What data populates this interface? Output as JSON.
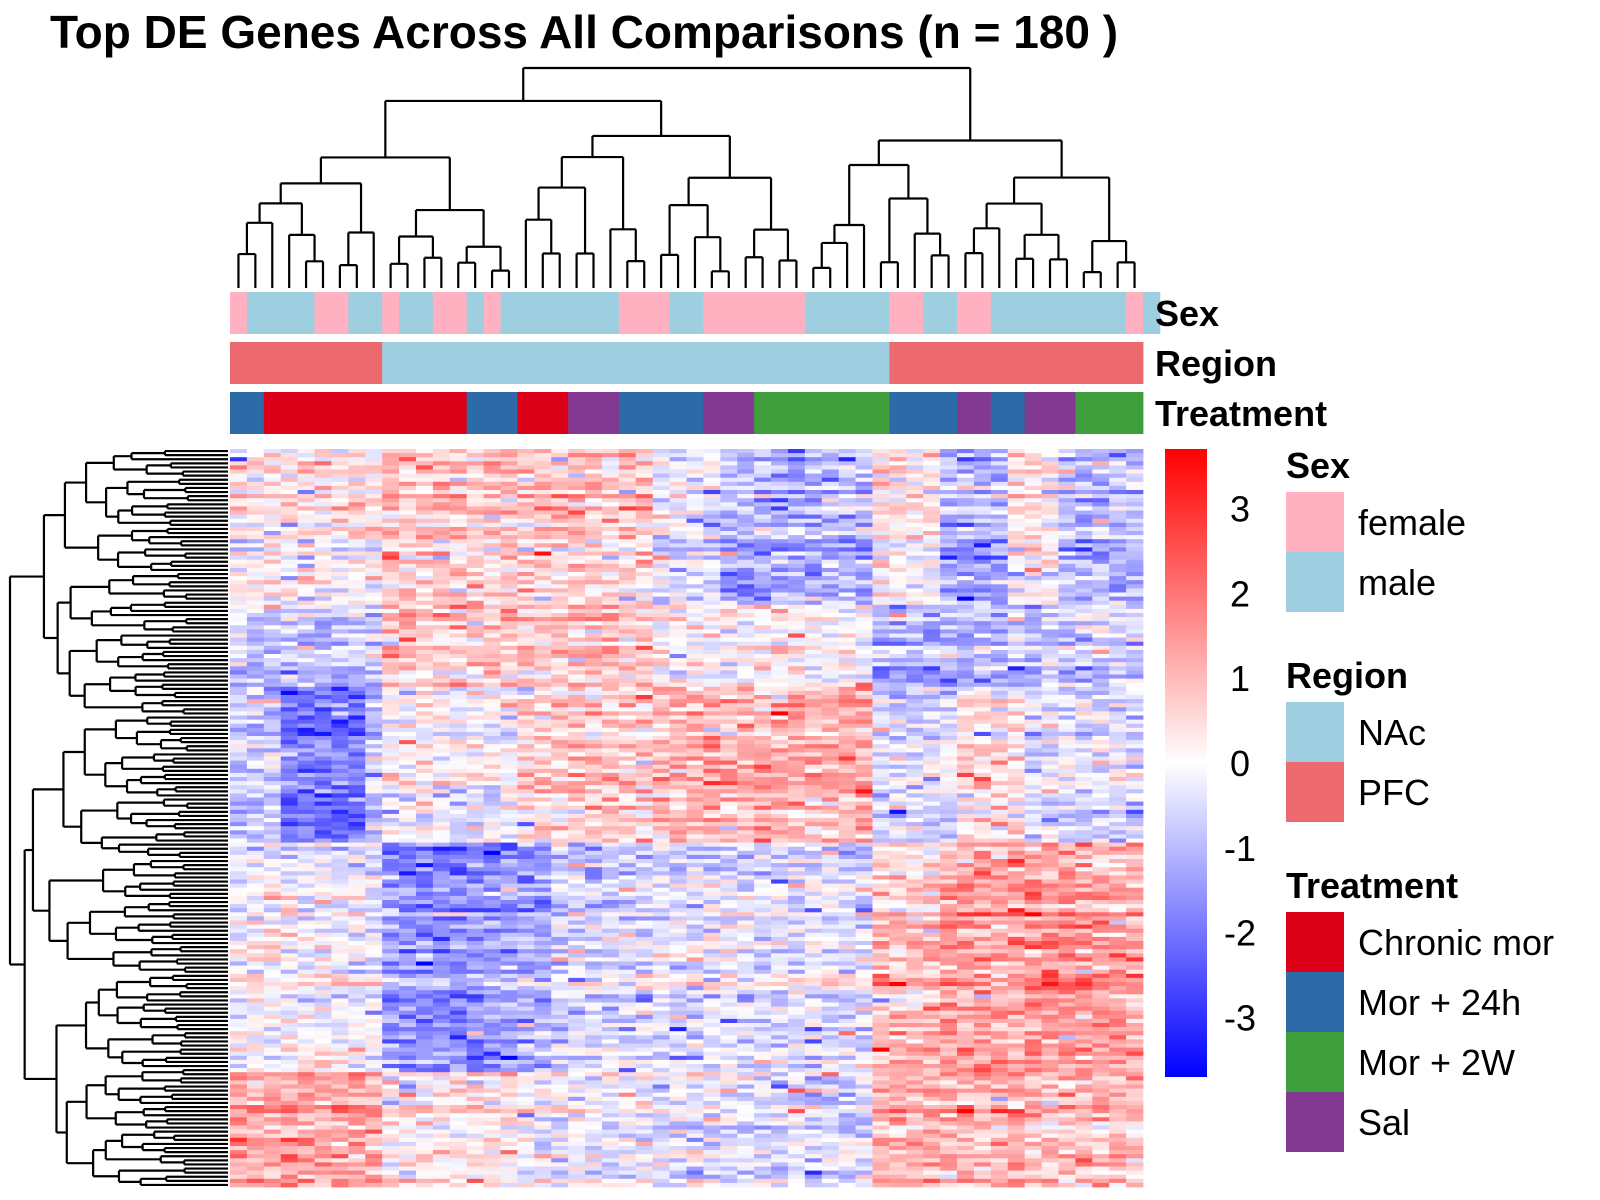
{
  "chart_data": {
    "type": "heatmap",
    "title": "Top DE Genes Across All Comparisons (n = 180 )",
    "n_genes": 180,
    "n_samples": 54,
    "color_scale": {
      "min": -3.7,
      "max": 3.7,
      "ticks": [
        3,
        2,
        1,
        0,
        -1,
        -2,
        -3
      ],
      "tick_labels": [
        "3",
        "2",
        "1",
        "0",
        "-1",
        "-2",
        "-3"
      ],
      "colors": [
        "#0000ff",
        "#ffffff",
        "#ff0000"
      ]
    },
    "column_dendrogram": true,
    "row_dendrogram": true,
    "column_annotations": [
      {
        "name": "Sex",
        "runs": [
          {
            "level": "female",
            "count": 1
          },
          {
            "level": "male",
            "count": 4
          },
          {
            "level": "female",
            "count": 2
          },
          {
            "level": "male",
            "count": 2
          },
          {
            "level": "female",
            "count": 1
          },
          {
            "level": "male",
            "count": 2
          },
          {
            "level": "female",
            "count": 2
          },
          {
            "level": "male",
            "count": 1
          },
          {
            "level": "female",
            "count": 1
          },
          {
            "level": "male",
            "count": 7
          },
          {
            "level": "female",
            "count": 3
          },
          {
            "level": "male",
            "count": 2
          },
          {
            "level": "female",
            "count": 6
          },
          {
            "level": "male",
            "count": 5
          },
          {
            "level": "female",
            "count": 2
          },
          {
            "level": "male",
            "count": 2
          },
          {
            "level": "female",
            "count": 2
          },
          {
            "level": "male",
            "count": 8
          },
          {
            "level": "female",
            "count": 1
          },
          {
            "level": "male",
            "count": 1
          }
        ]
      },
      {
        "name": "Region",
        "runs": [
          {
            "level": "PFC",
            "count": 9
          },
          {
            "level": "NAc",
            "count": 30
          },
          {
            "level": "PFC",
            "count": 15
          }
        ]
      },
      {
        "name": "Treatment",
        "runs": [
          {
            "level": "Mor + 24h",
            "count": 2
          },
          {
            "level": "Chronic mor",
            "count": 12
          },
          {
            "level": "Mor + 24h",
            "count": 3
          },
          {
            "level": "Chronic mor",
            "count": 3
          },
          {
            "level": "Sal",
            "count": 3
          },
          {
            "level": "Mor + 24h",
            "count": 5
          },
          {
            "level": "Sal",
            "count": 3
          },
          {
            "level": "Mor + 2W",
            "count": 8
          },
          {
            "level": "Mor + 24h",
            "count": 4
          },
          {
            "level": "Sal",
            "count": 2
          },
          {
            "level": "Mor + 24h",
            "count": 2
          },
          {
            "level": "Sal",
            "count": 3
          },
          {
            "level": "Mor + 2W",
            "count": 4
          }
        ]
      }
    ],
    "legends": [
      {
        "title": "Sex",
        "items": [
          {
            "label": "female",
            "color": "#ffb1c1"
          },
          {
            "label": "male",
            "color": "#9ecfe0"
          }
        ]
      },
      {
        "title": "Region",
        "items": [
          {
            "label": "NAc",
            "color": "#9ecfe0"
          },
          {
            "label": "PFC",
            "color": "#ec6a6e"
          }
        ]
      },
      {
        "title": "Treatment",
        "items": [
          {
            "label": "Chronic mor",
            "color": "#db0017"
          },
          {
            "label": "Mor + 24h",
            "color": "#2c6aa8"
          },
          {
            "label": "Mor + 2W",
            "color": "#3f9e3c"
          },
          {
            "label": "Sal",
            "color": "#833892"
          }
        ]
      }
    ],
    "row_blocks": [
      {
        "rows": 38,
        "cols": [
          0.3,
          0.3,
          0.3,
          0.3,
          0.3,
          0.3,
          0.3,
          0.3,
          0.3,
          0.8,
          0.8,
          0.8,
          0.8,
          0.8,
          0.8,
          0.8,
          0.8,
          0.8,
          0.8,
          0.8,
          0.8,
          0.8,
          0.8,
          0.8,
          0.8,
          -0.3,
          -0.3,
          -0.3,
          -0.3,
          -1.0,
          -1.0,
          -1.0,
          -1.0,
          -1.0,
          -1.0,
          -1.0,
          -1.0,
          -1.0,
          0.3,
          0.3,
          0.3,
          0.3,
          -1.1,
          -1.1,
          -1.1,
          -1.1,
          0.4,
          0.4,
          0.4,
          -1.0,
          -1.0,
          -1.0,
          -1.0,
          -1.0
        ]
      },
      {
        "rows": 20,
        "cols": [
          -0.8,
          -0.8,
          -0.8,
          -0.8,
          -0.8,
          -0.8,
          -0.8,
          -0.8,
          -0.8,
          0.9,
          0.9,
          0.9,
          0.9,
          0.9,
          0.9,
          0.9,
          0.9,
          0.9,
          0.9,
          0.9,
          0.9,
          0.9,
          0.9,
          0.9,
          0.9,
          0.1,
          0.1,
          0.1,
          0.1,
          0.1,
          0.1,
          0.1,
          0.1,
          0.1,
          0.1,
          0.1,
          0.1,
          0.1,
          -1.0,
          -1.0,
          -1.0,
          -1.0,
          -1.0,
          -1.0,
          -1.0,
          -1.0,
          -1.0,
          -1.0,
          -0.6,
          -0.6,
          -0.6,
          -0.6,
          -0.6,
          -0.6
        ]
      },
      {
        "rows": 38,
        "cols": [
          -0.8,
          -0.8,
          -0.8,
          -2.0,
          -2.0,
          -2.0,
          -2.0,
          -2.0,
          -0.8,
          0.0,
          0.0,
          0.0,
          0.0,
          -0.2,
          -0.2,
          -0.2,
          -0.2,
          0.6,
          0.6,
          0.6,
          0.6,
          0.6,
          0.6,
          0.6,
          0.6,
          1.0,
          1.0,
          1.0,
          1.0,
          1.0,
          1.0,
          1.0,
          1.0,
          1.0,
          1.0,
          1.2,
          1.2,
          1.2,
          -0.6,
          -0.6,
          -0.6,
          -0.6,
          -0.6,
          0.3,
          0.3,
          0.3,
          0.3,
          -0.5,
          -0.5,
          -0.5,
          -0.5,
          -0.5,
          -0.5,
          -0.5
        ]
      },
      {
        "rows": 56,
        "cols": [
          0.0,
          0.0,
          0.0,
          0.0,
          0.0,
          0.0,
          -0.2,
          -0.2,
          -0.2,
          -1.5,
          -1.5,
          -1.5,
          -1.5,
          -1.5,
          -1.5,
          -1.2,
          -1.2,
          -1.2,
          -1.2,
          -0.5,
          -0.5,
          -0.5,
          -0.5,
          -0.5,
          -0.5,
          -0.3,
          -0.3,
          -0.3,
          -0.3,
          -0.3,
          -0.3,
          -0.3,
          -0.3,
          -0.3,
          -0.3,
          -0.3,
          -0.3,
          -0.3,
          0.9,
          0.9,
          0.9,
          0.9,
          1.4,
          1.4,
          1.4,
          1.4,
          1.4,
          1.6,
          1.6,
          1.6,
          1.6,
          1.4,
          1.4,
          1.4
        ]
      },
      {
        "rows": 28,
        "cols": [
          1.2,
          1.2,
          1.2,
          1.2,
          1.2,
          1.2,
          1.2,
          1.2,
          1.2,
          0.2,
          0.2,
          0.2,
          0.2,
          0.2,
          0.2,
          0.2,
          0.2,
          -0.2,
          -0.2,
          -0.2,
          -0.2,
          -0.2,
          -0.2,
          -0.2,
          -0.2,
          -0.5,
          -0.5,
          -0.5,
          -0.5,
          -0.5,
          -0.5,
          -0.5,
          -0.5,
          -0.5,
          -0.5,
          -0.5,
          -0.5,
          -0.5,
          1.0,
          1.0,
          1.0,
          1.0,
          1.0,
          1.0,
          1.0,
          1.0,
          1.0,
          1.0,
          0.8,
          0.8,
          0.8,
          0.8,
          0.8,
          0.8
        ]
      }
    ]
  }
}
